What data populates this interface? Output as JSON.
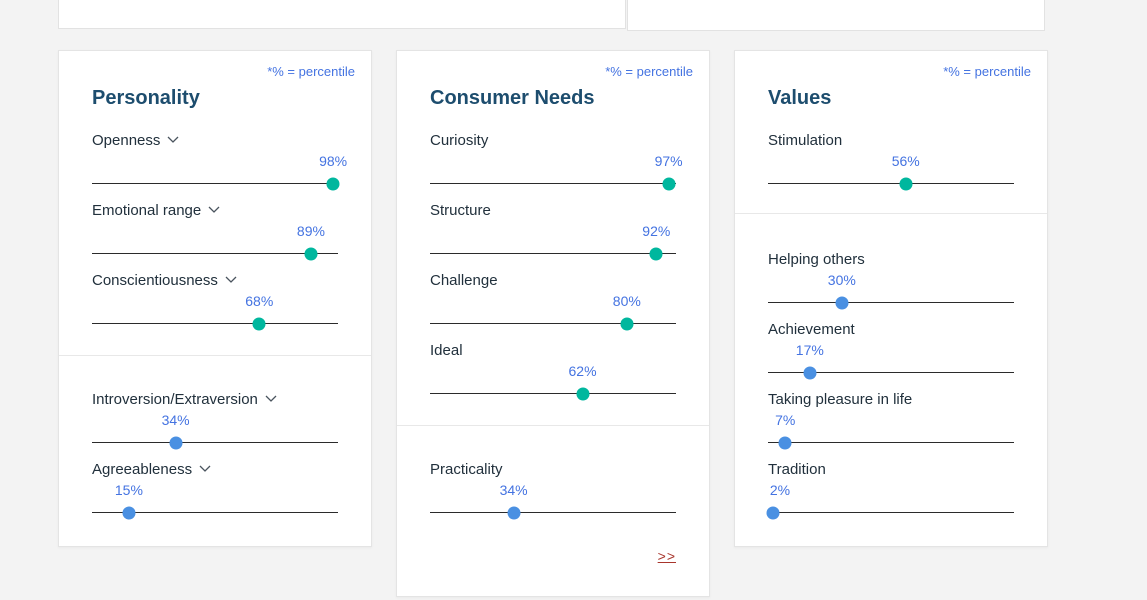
{
  "colors": {
    "teal": "#00b79e",
    "blue": "#4a90e2",
    "percent_text": "#4473e1",
    "title_text": "#1d4d6e",
    "label_text": "#21303c",
    "link": "#a8352c"
  },
  "cards": [
    {
      "id": "personality",
      "note": "*% = percentile",
      "title": "Personality",
      "sections": [
        {
          "traits": [
            {
              "label": "Openness",
              "expandable": true,
              "pct": 98,
              "color": "teal"
            },
            {
              "label": "Emotional range",
              "expandable": true,
              "pct": 89,
              "color": "teal"
            },
            {
              "label": "Conscientiousness",
              "expandable": true,
              "pct": 68,
              "color": "teal"
            }
          ]
        },
        {
          "traits": [
            {
              "label": "Introversion/Extraversion",
              "expandable": true,
              "pct": 34,
              "color": "blue"
            },
            {
              "label": "Agreeableness",
              "expandable": true,
              "pct": 15,
              "color": "blue"
            }
          ]
        }
      ]
    },
    {
      "id": "needs",
      "note": "*% = percentile",
      "title": "Consumer Needs",
      "more_link": ">>",
      "sections": [
        {
          "traits": [
            {
              "label": "Curiosity",
              "expandable": false,
              "pct": 97,
              "color": "teal"
            },
            {
              "label": "Structure",
              "expandable": false,
              "pct": 92,
              "color": "teal"
            },
            {
              "label": "Challenge",
              "expandable": false,
              "pct": 80,
              "color": "teal"
            },
            {
              "label": "Ideal",
              "expandable": false,
              "pct": 62,
              "color": "teal"
            }
          ]
        },
        {
          "traits": [
            {
              "label": "Practicality",
              "expandable": false,
              "pct": 34,
              "color": "blue"
            }
          ]
        }
      ]
    },
    {
      "id": "values",
      "note": "*% = percentile",
      "title": "Values",
      "sections": [
        {
          "traits": [
            {
              "label": "Stimulation",
              "expandable": false,
              "pct": 56,
              "color": "teal"
            }
          ]
        },
        {
          "traits": [
            {
              "label": "Helping others",
              "expandable": false,
              "pct": 30,
              "color": "blue"
            },
            {
              "label": "Achievement",
              "expandable": false,
              "pct": 17,
              "color": "blue"
            },
            {
              "label": "Taking pleasure in life",
              "expandable": false,
              "pct": 7,
              "color": "blue"
            },
            {
              "label": "Tradition",
              "expandable": false,
              "pct": 2,
              "color": "blue"
            }
          ]
        }
      ]
    }
  ]
}
